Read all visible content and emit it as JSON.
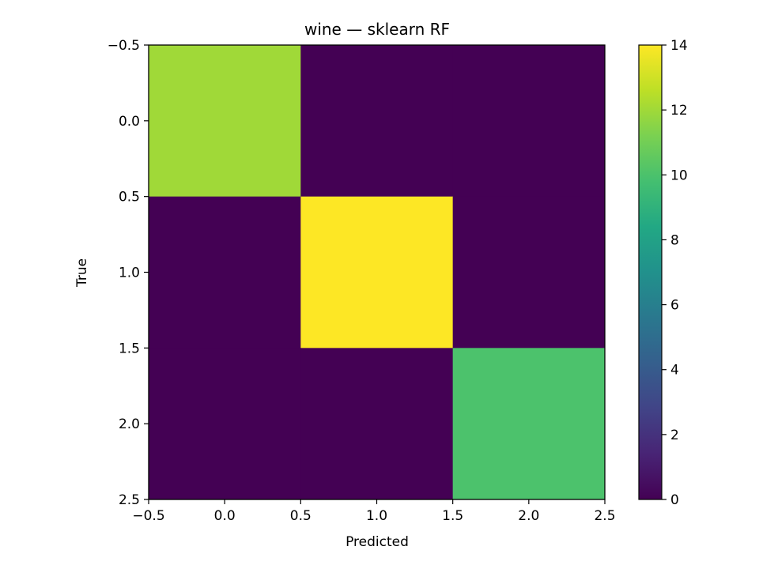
{
  "chart_data": {
    "type": "heatmap",
    "title": "wine — sklearn RF",
    "xlabel": "Predicted",
    "ylabel": "True",
    "matrix": [
      [
        12,
        0,
        0
      ],
      [
        0,
        14,
        0
      ],
      [
        0,
        0,
        10
      ]
    ],
    "xlim": [
      -0.5,
      2.5
    ],
    "ylim": [
      2.5,
      -0.5
    ],
    "x_ticks": [
      -0.5,
      0.0,
      0.5,
      1.0,
      1.5,
      2.0,
      2.5
    ],
    "x_tick_labels": [
      "−0.5",
      "0.0",
      "0.5",
      "1.0",
      "1.5",
      "2.0",
      "2.5"
    ],
    "y_ticks": [
      -0.5,
      0.0,
      0.5,
      1.0,
      1.5,
      2.0,
      2.5
    ],
    "y_tick_labels": [
      "−0.5",
      "0.0",
      "0.5",
      "1.0",
      "1.5",
      "2.0",
      "2.5"
    ],
    "colorbar": {
      "colormap": "viridis",
      "vmin": 0,
      "vmax": 14,
      "ticks": [
        0,
        2,
        4,
        6,
        8,
        10,
        12,
        14
      ],
      "tick_labels": [
        "0",
        "2",
        "4",
        "6",
        "8",
        "10",
        "12",
        "14"
      ]
    },
    "grid": false,
    "legend": "none"
  }
}
